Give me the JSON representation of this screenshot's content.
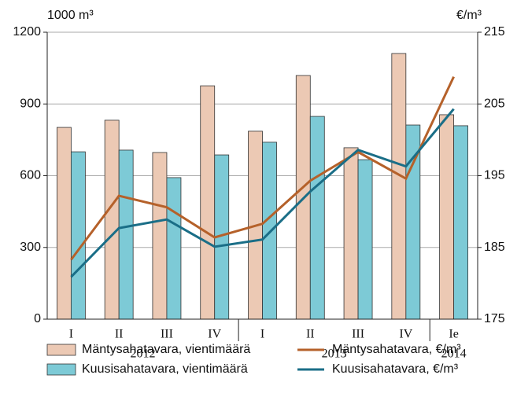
{
  "chart_data": {
    "type": "bar-line",
    "y_axis_label": "1000 m³",
    "y2_axis_label": "€/m³",
    "category_groups": [
      {
        "name": "2012",
        "categories": [
          "I",
          "II",
          "III",
          "IV"
        ]
      },
      {
        "name": "2013",
        "categories": [
          "I",
          "II",
          "III",
          "IV"
        ]
      },
      {
        "name": "2014",
        "categories": [
          "Ie"
        ]
      }
    ],
    "series": [
      {
        "name": "Mäntysahatavara, vientimäärä",
        "type": "bar",
        "color": "#ecc9b4",
        "values": [
          802,
          832,
          697,
          976,
          786,
          1019,
          717,
          1111,
          855
        ]
      },
      {
        "name": "Kuusisahatavara, vientimäärä",
        "type": "bar",
        "color": "#7dcad6",
        "values": [
          700,
          707,
          592,
          687,
          740,
          848,
          667,
          812,
          809
        ]
      },
      {
        "name": "Mäntysahatavara, €/m³",
        "type": "line",
        "axis": "y2",
        "color": "#b5612a",
        "values": [
          183.3,
          192.2,
          190.6,
          186.4,
          188.3,
          194.3,
          198.3,
          194.6,
          208.8
        ]
      },
      {
        "name": "Kuusisahatavara, €/m³",
        "type": "line",
        "axis": "y2",
        "color": "#1a6e87",
        "values": [
          180.9,
          187.7,
          188.9,
          185.1,
          186.1,
          192.8,
          198.6,
          196.3,
          204.3
        ]
      }
    ],
    "ylim": [
      0,
      1200
    ],
    "yticks": [
      0,
      300,
      600,
      900,
      1200
    ],
    "y2lim": [
      175,
      215
    ],
    "y2ticks": [
      175,
      185,
      195,
      205,
      215
    ],
    "grid": true
  }
}
